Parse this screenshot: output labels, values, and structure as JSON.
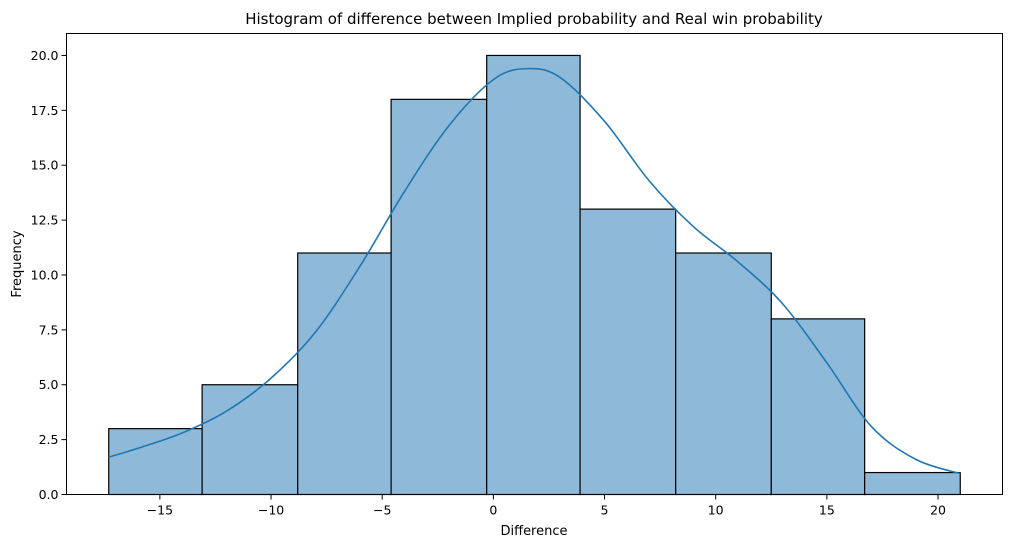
{
  "chart_data": {
    "type": "bar",
    "title": "Histogram of difference between Implied probability and Real win probability",
    "xlabel": "Difference",
    "ylabel": "Frequency",
    "bins": [
      {
        "x0": -17.3,
        "x1": -13.1,
        "count": 3
      },
      {
        "x0": -13.1,
        "x1": -8.8,
        "count": 5
      },
      {
        "x0": -8.8,
        "x1": -4.6,
        "count": 11
      },
      {
        "x0": -4.6,
        "x1": -0.3,
        "count": 18
      },
      {
        "x0": -0.3,
        "x1": 3.9,
        "count": 20
      },
      {
        "x0": 3.9,
        "x1": 8.2,
        "count": 13
      },
      {
        "x0": 8.2,
        "x1": 12.5,
        "count": 11
      },
      {
        "x0": 12.5,
        "x1": 16.7,
        "count": 8
      },
      {
        "x0": 16.7,
        "x1": 21.0,
        "count": 1
      }
    ],
    "kde": {
      "x": [
        -17.3,
        -16,
        -14,
        -12,
        -10,
        -8,
        -6,
        -4,
        -2,
        0,
        1.5,
        3,
        5,
        7,
        9,
        11,
        13,
        15,
        17,
        19,
        21.0
      ],
      "y": [
        1.7,
        2.1,
        2.8,
        3.8,
        5.3,
        7.4,
        10.4,
        13.8,
        16.8,
        18.9,
        19.4,
        19.0,
        17.0,
        14.3,
        12.2,
        10.6,
        8.7,
        6.0,
        3.1,
        1.6,
        0.95
      ]
    },
    "xlim": [
      -19.2,
      22.9
    ],
    "ylim": [
      0,
      21
    ],
    "xticks": [
      -15,
      -10,
      -5,
      0,
      5,
      10,
      15,
      20
    ],
    "xtick_labels": [
      "−15",
      "−10",
      "−5",
      "0",
      "5",
      "10",
      "15",
      "20"
    ],
    "yticks": [
      0,
      2.5,
      5,
      7.5,
      10,
      12.5,
      15,
      17.5,
      20
    ],
    "ytick_labels": [
      "0.0",
      "2.5",
      "5.0",
      "7.5",
      "10.0",
      "12.5",
      "15.0",
      "17.5",
      "20.0"
    ],
    "grid": false,
    "colors": {
      "bar_fill": "#8fb9d9",
      "bar_edge": "#000000",
      "kde_line": "#1f77b4"
    }
  }
}
